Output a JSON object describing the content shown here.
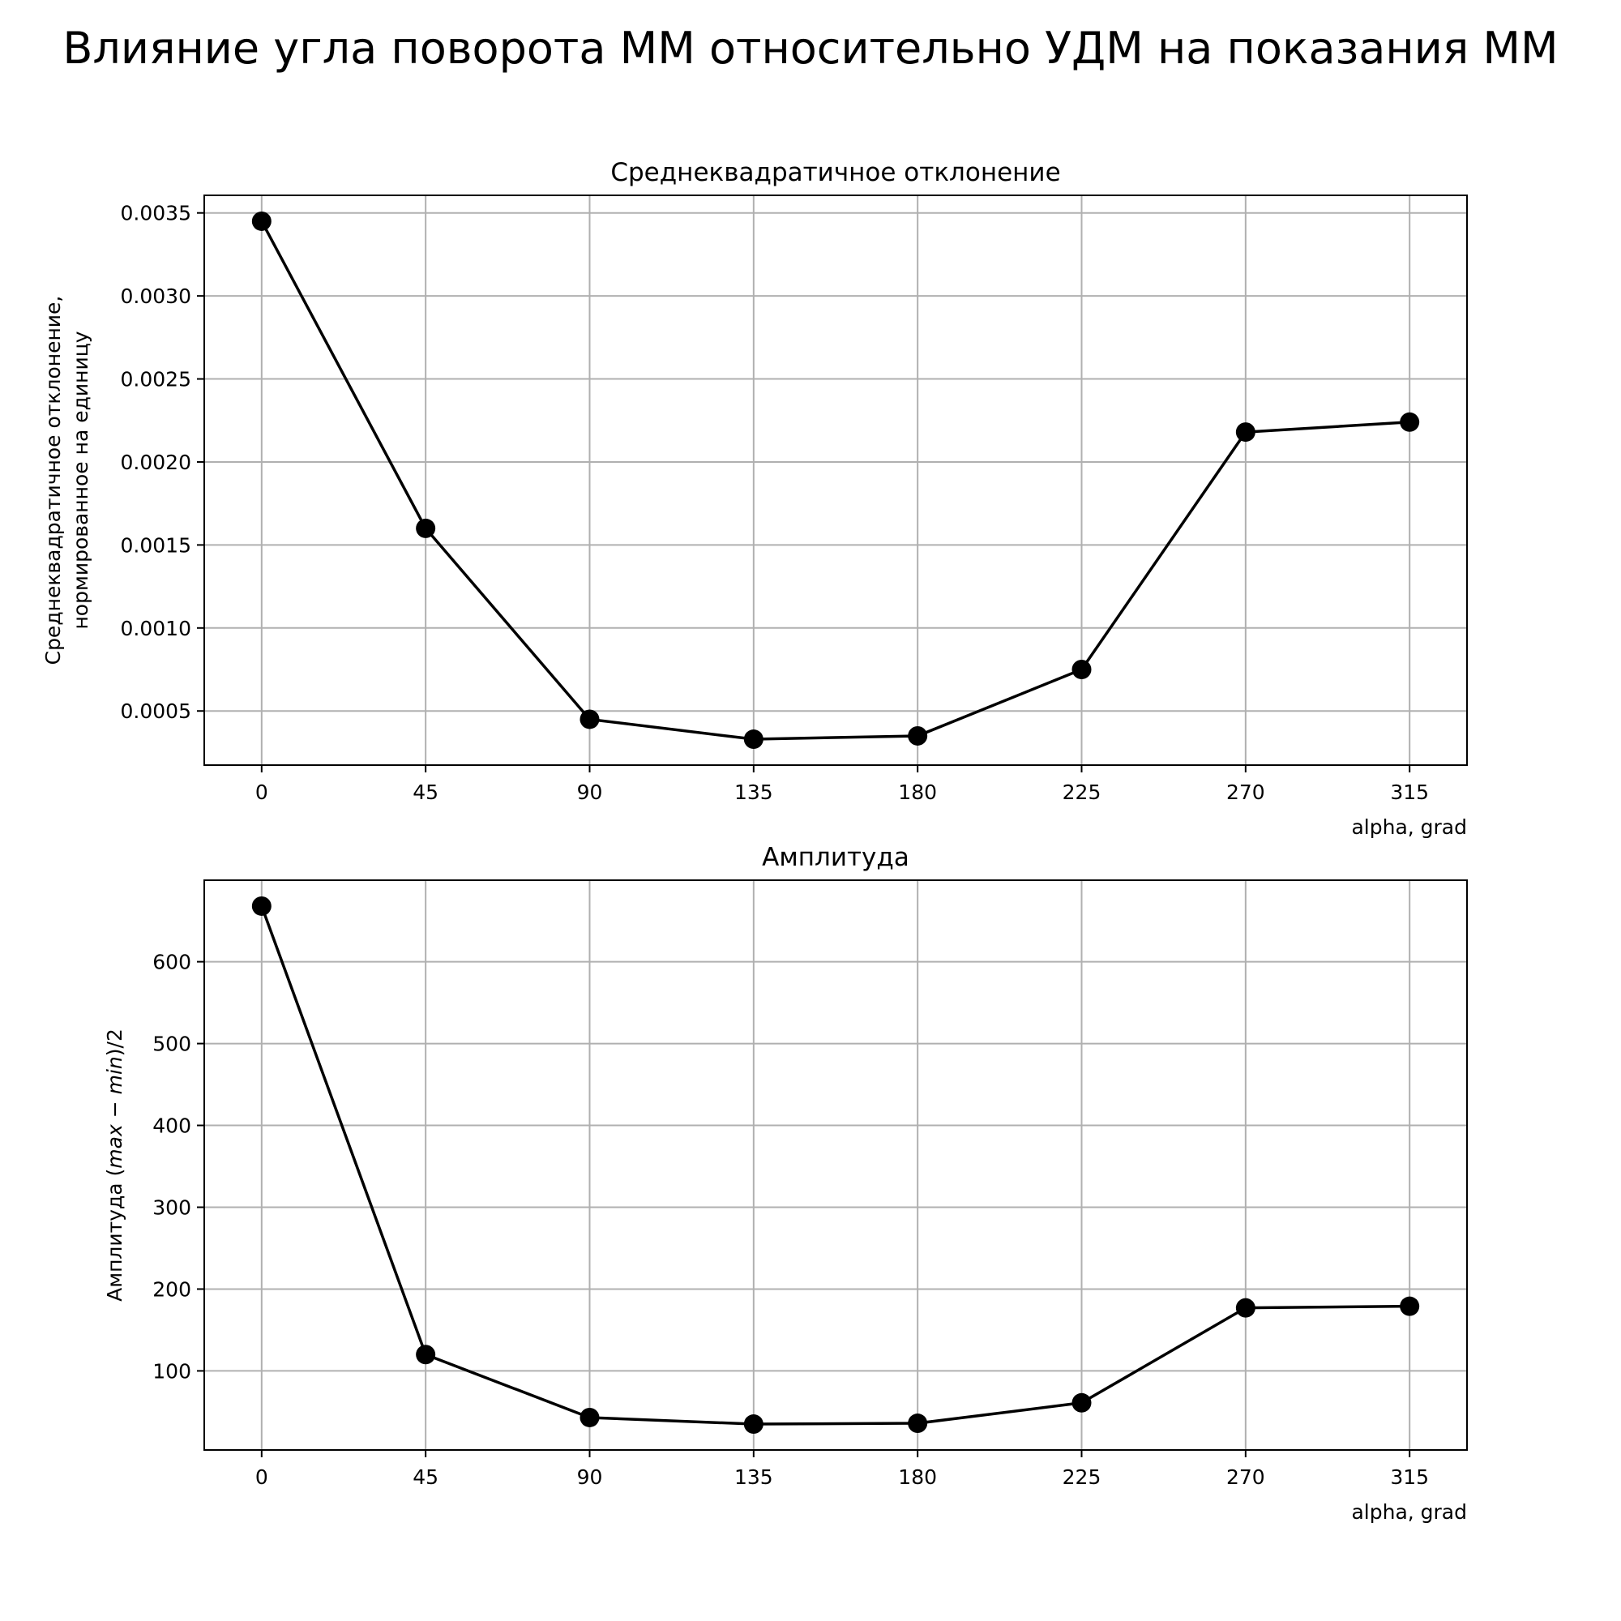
{
  "suptitle": "Влияние угла поворота ММ относительно УДМ на показания ММ",
  "chart_data": [
    {
      "type": "line",
      "title": "Среднеквадратичное отклонение",
      "xlabel": "alpha, grad",
      "ylabel_lines": [
        "Среднеквадратичное отклонение,",
        "нормированное на единицу"
      ],
      "x": [
        0,
        45,
        90,
        135,
        180,
        225,
        270,
        315
      ],
      "y": [
        0.00345,
        0.0016,
        0.00045,
        0.00033,
        0.00035,
        0.00075,
        0.00218,
        0.00224
      ],
      "xticks": [
        0,
        45,
        90,
        135,
        180,
        225,
        270,
        315
      ],
      "xtick_labels": [
        "0",
        "45",
        "90",
        "135",
        "180",
        "225",
        "270",
        "315"
      ],
      "yticks": [
        0.0005,
        0.001,
        0.0015,
        0.002,
        0.0025,
        0.003,
        0.0035
      ],
      "ytick_labels": [
        "0.0005",
        "0.0010",
        "0.0015",
        "0.0020",
        "0.0025",
        "0.0030",
        "0.0035"
      ],
      "xlim": [
        -15.75,
        330.75
      ],
      "ylim": [
        0.000174,
        0.003606
      ],
      "grid": true,
      "color": "#000000"
    },
    {
      "type": "line",
      "title": "Амплитуда",
      "xlabel": "alpha, grad",
      "ylabel_parts": [
        "Амплитуда (",
        "max",
        " − ",
        "min",
        ")/2"
      ],
      "x": [
        0,
        45,
        90,
        135,
        180,
        225,
        270,
        315
      ],
      "y": [
        668,
        120,
        43,
        35,
        36,
        61,
        177,
        179
      ],
      "xticks": [
        0,
        45,
        90,
        135,
        180,
        225,
        270,
        315
      ],
      "xtick_labels": [
        "0",
        "45",
        "90",
        "135",
        "180",
        "225",
        "270",
        "315"
      ],
      "yticks": [
        100,
        200,
        300,
        400,
        500,
        600
      ],
      "ytick_labels": [
        "100",
        "200",
        "300",
        "400",
        "500",
        "600"
      ],
      "xlim": [
        -15.75,
        330.75
      ],
      "ylim": [
        3.35,
        699.65
      ],
      "grid": true,
      "color": "#000000"
    }
  ]
}
